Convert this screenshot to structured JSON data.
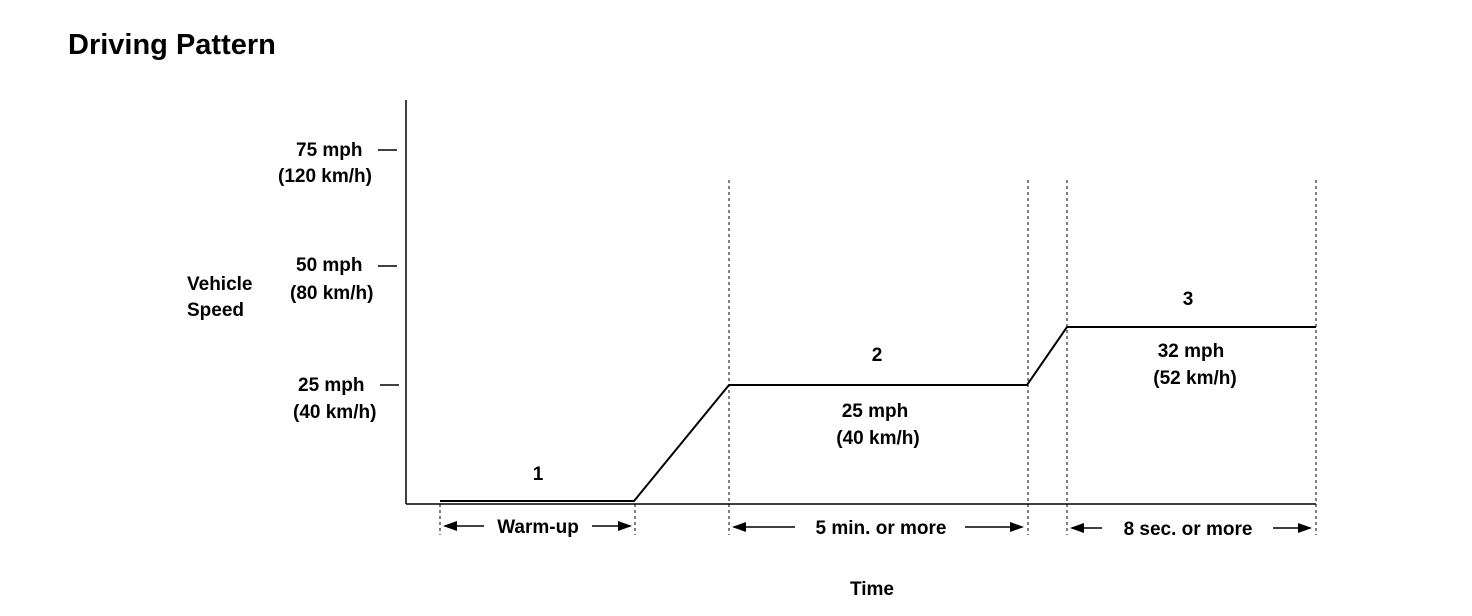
{
  "title": "Driving Pattern",
  "y_axis_label_line1": "Vehicle",
  "y_axis_label_line2": "Speed",
  "x_axis_label": "Time",
  "y_ticks": [
    {
      "mph": "75 mph",
      "kmh": "(120 km/h)"
    },
    {
      "mph": "50 mph",
      "kmh": "(80 km/h)"
    },
    {
      "mph": "25 mph",
      "kmh": "(40 km/h)"
    }
  ],
  "phases": [
    {
      "number": "1",
      "duration": "Warm-up"
    },
    {
      "number": "2",
      "speed_mph": "25 mph",
      "speed_kmh": "(40 km/h)",
      "duration": "5 min. or more"
    },
    {
      "number": "3",
      "speed_mph": "32 mph",
      "speed_kmh": "(52 km/h)",
      "duration": "8 sec. or more"
    }
  ]
}
